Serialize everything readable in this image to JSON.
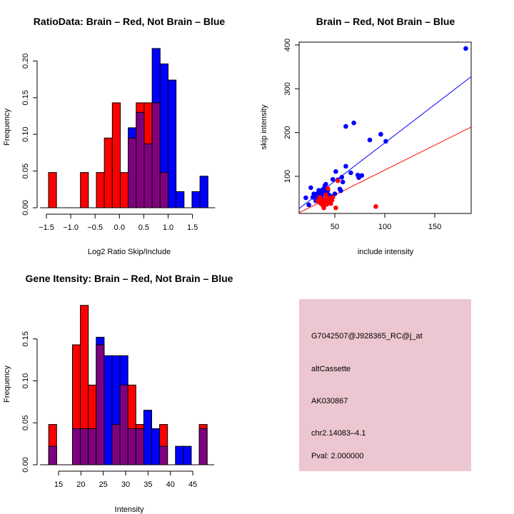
{
  "colors": {
    "brain": "#ff0000",
    "not_brain": "#0000ff",
    "overlap": "#800080",
    "info_bg": "#ecc6d0",
    "pval": "#8b0000"
  },
  "chart_data": [
    {
      "id": "ratio-hist",
      "type": "bar",
      "subtype": "overlaid-histogram",
      "title": "RatioData: Brain – Red, Not Brain – Blue",
      "xlabel": "Log2 Ratio Skip/Include",
      "ylabel": "Frequency",
      "xlim": [
        -1.5,
        1.85
      ],
      "ylim": [
        0,
        0.22
      ],
      "xticks": [
        -1.5,
        -1.0,
        -0.5,
        0.0,
        0.5,
        1.0,
        1.5
      ],
      "xtick_labels": [
        "−1.5",
        "−1.0",
        "−0.5",
        "0.0",
        "0.5",
        "1.0",
        "1.5"
      ],
      "yticks": [
        0.0,
        0.05,
        0.1,
        0.15,
        0.2
      ],
      "ytick_labels": [
        "0.00",
        "0.05",
        "0.10",
        "0.15",
        "0.20"
      ],
      "bin_start": -1.456,
      "bin_width": 0.1637,
      "series": [
        {
          "name": "Brain (red)",
          "color": "#ff0000",
          "values": [
            0.048,
            0,
            0,
            0,
            0.048,
            0,
            0.048,
            0.095,
            0.143,
            0.048,
            0.095,
            0.143,
            0.143,
            0.143,
            0.048,
            0,
            0,
            0,
            0,
            0
          ]
        },
        {
          "name": "Not Brain (blue)",
          "color": "#0000ff",
          "values": [
            0,
            0,
            0,
            0,
            0,
            0,
            0,
            0,
            0,
            0,
            0.109,
            0.13,
            0.087,
            0.217,
            0.196,
            0.174,
            0.022,
            0,
            0.022,
            0.043
          ]
        }
      ]
    },
    {
      "id": "intensity-scatter",
      "type": "scatter",
      "title": "Brain – Red, Not Brain – Blue",
      "xlabel": "include intensity",
      "ylabel": "skip intensity",
      "xlim": [
        14.3,
        186.4
      ],
      "ylim": [
        15.2,
        406.5
      ],
      "xticks": [
        50,
        100,
        150
      ],
      "yticks": [
        100,
        200,
        300,
        400
      ],
      "series": [
        {
          "name": "Not Brain (blue)",
          "color": "#0000ff",
          "points": [
            [
              181,
              392
            ],
            [
              61,
              214
            ],
            [
              69,
              222
            ],
            [
              85,
              183
            ],
            [
              96,
              196
            ],
            [
              101,
              180
            ],
            [
              61,
              123
            ],
            [
              51,
              111
            ],
            [
              66,
              108
            ],
            [
              73,
              103
            ],
            [
              77,
              102
            ],
            [
              74,
              97
            ],
            [
              48,
              93
            ],
            [
              53,
              92
            ],
            [
              57,
              98
            ],
            [
              58,
              87
            ],
            [
              41,
              82
            ],
            [
              26,
              74
            ],
            [
              55,
              71
            ],
            [
              56,
              67
            ],
            [
              21,
              51
            ],
            [
              24,
              35
            ],
            [
              40,
              78
            ],
            [
              38,
              70
            ],
            [
              36,
              64
            ],
            [
              34,
              68
            ],
            [
              32,
              60
            ],
            [
              30,
              55
            ],
            [
              28,
              52
            ],
            [
              33,
              50
            ],
            [
              37,
              57
            ],
            [
              39,
              62
            ],
            [
              42,
              66
            ],
            [
              44,
              58
            ],
            [
              45,
              46
            ],
            [
              35,
              47
            ],
            [
              31,
              44
            ],
            [
              40,
              74
            ],
            [
              41,
              72
            ],
            [
              38,
              45
            ],
            [
              29,
              60
            ],
            [
              47,
              54
            ],
            [
              50,
              60
            ],
            [
              43,
              68
            ],
            [
              36,
              52
            ],
            [
              34,
              56
            ]
          ]
        },
        {
          "name": "Brain (red)",
          "color": "#ff0000",
          "points": [
            [
              91,
              31
            ],
            [
              51,
              28
            ],
            [
              39,
              28
            ],
            [
              53,
              90
            ],
            [
              41,
              58
            ],
            [
              43,
              72
            ],
            [
              36,
              38
            ],
            [
              34,
              42
            ],
            [
              38,
              34
            ],
            [
              42,
              36
            ],
            [
              45,
              40
            ],
            [
              47,
              45
            ],
            [
              44,
              50
            ],
            [
              48,
              52
            ],
            [
              40,
              48
            ],
            [
              37,
              46
            ],
            [
              33,
              44
            ],
            [
              46,
              38
            ],
            [
              39,
              40
            ],
            [
              35,
              52
            ],
            [
              42,
              44
            ]
          ]
        }
      ],
      "fit_lines": [
        {
          "name": "Not Brain fit",
          "color": "#0000ff",
          "slope": 1.75,
          "intercept": 1.4
        },
        {
          "name": "Brain fit",
          "color": "#ff0000",
          "slope": 1.138,
          "intercept": 0.5
        }
      ]
    },
    {
      "id": "gene-hist",
      "type": "bar",
      "subtype": "overlaid-histogram",
      "title": "Gene Itensity: Brain – Red, Not Brain – Blue",
      "xlabel": "Intensity",
      "ylabel": "Frequency",
      "xlim": [
        12.5,
        49
      ],
      "ylim": [
        0,
        0.2
      ],
      "xticks": [
        15,
        20,
        25,
        30,
        35,
        40,
        45
      ],
      "yticks": [
        0.0,
        0.05,
        0.1,
        0.15
      ],
      "ytick_labels": [
        "0.00",
        "0.05",
        "0.10",
        "0.15"
      ],
      "bin_start": 12.8,
      "bin_width": 1.77,
      "series": [
        {
          "name": "Brain (red)",
          "color": "#ff0000",
          "values": [
            0.048,
            0,
            0,
            0.143,
            0.19,
            0.095,
            0.143,
            0,
            0.048,
            0.095,
            0.095,
            0.048,
            0,
            0,
            0.048,
            0,
            0,
            0,
            0,
            0.048
          ]
        },
        {
          "name": "Not Brain (blue)",
          "color": "#0000ff",
          "values": [
            0.022,
            0,
            0,
            0.043,
            0.043,
            0.043,
            0.152,
            0.13,
            0.13,
            0.13,
            0.043,
            0.043,
            0.065,
            0.043,
            0.022,
            0,
            0.022,
            0.022,
            0,
            0.043
          ]
        }
      ]
    }
  ],
  "info_box": {
    "lines": [
      "G7042507@J928365_RC@j_at",
      "altCassette",
      "AK030867",
      "chr2.14083–4.1"
    ],
    "pval": "Pval: 2.000000"
  }
}
